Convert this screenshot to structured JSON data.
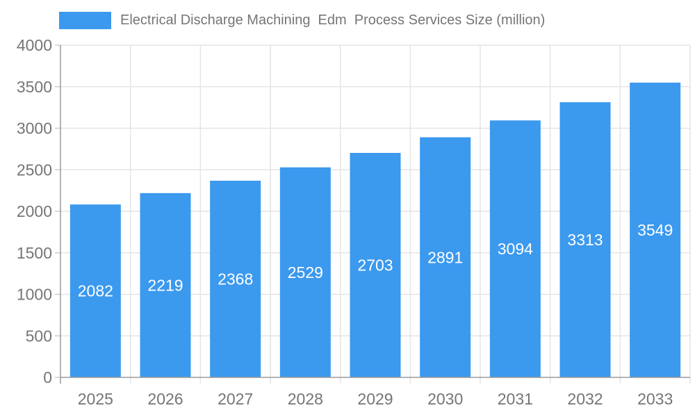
{
  "chart_data": {
    "type": "bar",
    "title": "Electrical Discharge Machining  Edm  Process Services Size (million)",
    "xlabel": "",
    "ylabel": "",
    "categories": [
      "2025",
      "2026",
      "2027",
      "2028",
      "2029",
      "2030",
      "2031",
      "2032",
      "2033"
    ],
    "values": [
      2082,
      2219,
      2368,
      2529,
      2703,
      2891,
      3094,
      3313,
      3549
    ],
    "ylim": [
      0,
      4000
    ],
    "yticks": [
      0,
      500,
      1000,
      1500,
      2000,
      2500,
      3000,
      3500,
      4000
    ],
    "grid": true,
    "legend_position": "top-left",
    "bar_value_labels": true,
    "colors": {
      "bar": "#3b99ee",
      "bar_label": "#ffffff",
      "axis_text": "#757575",
      "grid_line": "#e4e4e4",
      "axis_line": "#9a9a9a",
      "tick": "#cccccc",
      "background": "#ffffff"
    }
  }
}
